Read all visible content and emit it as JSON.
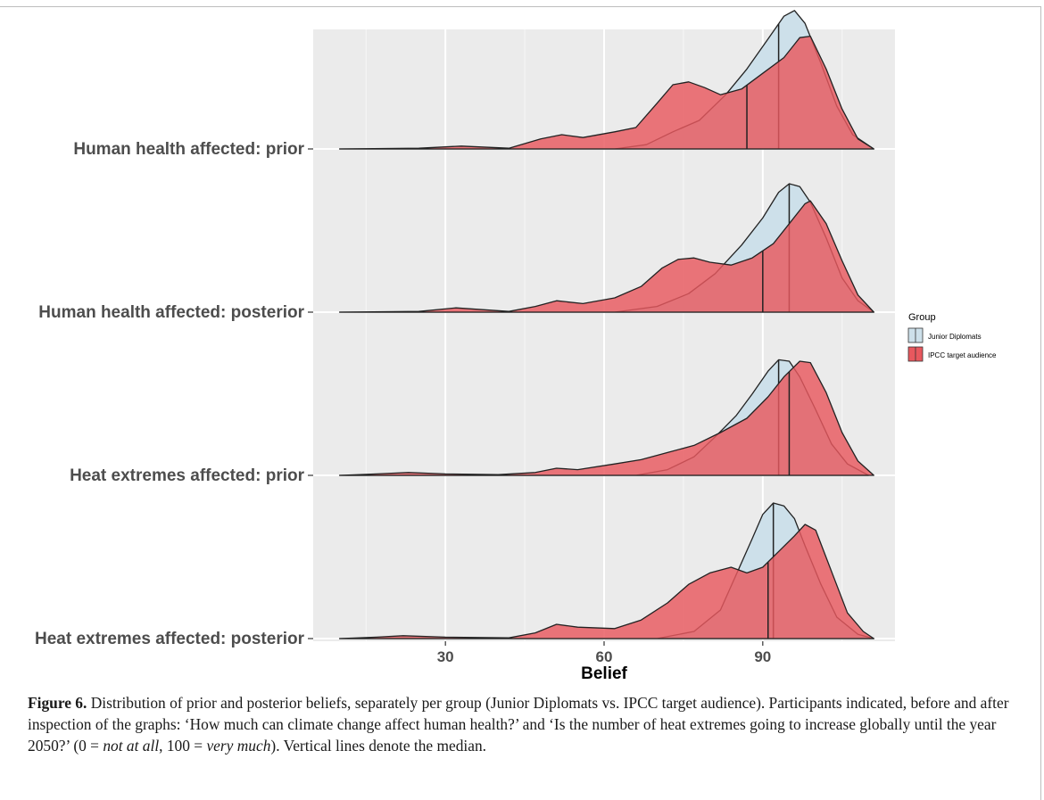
{
  "chart_data": {
    "type": "ridgeline-density",
    "xlabel": "Belief",
    "x_ticks": [
      30,
      60,
      90
    ],
    "xlim": [
      5,
      115
    ],
    "colors": {
      "Junior Diplomats": "#cde0ea",
      "IPCC target audience": "#e8585e"
    },
    "legend": {
      "title": "Group",
      "placement": "right",
      "entries": [
        "Junior Diplomats",
        "IPCC target audience"
      ]
    },
    "rows": [
      {
        "label": "Human health affected: prior",
        "series": [
          {
            "name": "IPCC target audience",
            "median": 87,
            "points": [
              [
                10,
                0
              ],
              [
                25,
                0.005
              ],
              [
                33,
                0.02
              ],
              [
                42,
                0.005
              ],
              [
                48,
                0.07
              ],
              [
                52,
                0.1
              ],
              [
                56,
                0.08
              ],
              [
                62,
                0.12
              ],
              [
                66,
                0.15
              ],
              [
                70,
                0.32
              ],
              [
                73,
                0.45
              ],
              [
                76,
                0.47
              ],
              [
                79,
                0.43
              ],
              [
                82,
                0.38
              ],
              [
                86,
                0.42
              ],
              [
                90,
                0.53
              ],
              [
                94,
                0.64
              ],
              [
                97,
                0.78
              ],
              [
                99,
                0.79
              ],
              [
                102,
                0.56
              ],
              [
                105,
                0.28
              ],
              [
                108,
                0.07
              ],
              [
                111,
                0
              ]
            ]
          },
          {
            "name": "Junior Diplomats",
            "median": 93,
            "points": [
              [
                10,
                0
              ],
              [
                30,
                0
              ],
              [
                50,
                0
              ],
              [
                62,
                0
              ],
              [
                68,
                0.03
              ],
              [
                73,
                0.12
              ],
              [
                78,
                0.2
              ],
              [
                83,
                0.38
              ],
              [
                87,
                0.56
              ],
              [
                91,
                0.77
              ],
              [
                94,
                0.93
              ],
              [
                96,
                0.97
              ],
              [
                98,
                0.88
              ],
              [
                101,
                0.6
              ],
              [
                104,
                0.3
              ],
              [
                107,
                0.1
              ],
              [
                111,
                0
              ]
            ]
          }
        ]
      },
      {
        "label": "Human health affected: posterior",
        "series": [
          {
            "name": "IPCC target audience",
            "median": 90,
            "points": [
              [
                10,
                0
              ],
              [
                25,
                0.005
              ],
              [
                32,
                0.03
              ],
              [
                42,
                0.005
              ],
              [
                47,
                0.04
              ],
              [
                51,
                0.08
              ],
              [
                56,
                0.06
              ],
              [
                62,
                0.1
              ],
              [
                67,
                0.18
              ],
              [
                71,
                0.31
              ],
              [
                74,
                0.37
              ],
              [
                77,
                0.38
              ],
              [
                80,
                0.35
              ],
              [
                84,
                0.33
              ],
              [
                88,
                0.38
              ],
              [
                92,
                0.48
              ],
              [
                95,
                0.62
              ],
              [
                98,
                0.76
              ],
              [
                99,
                0.78
              ],
              [
                102,
                0.62
              ],
              [
                105,
                0.36
              ],
              [
                108,
                0.12
              ],
              [
                111,
                0
              ]
            ]
          },
          {
            "name": "Junior Diplomats",
            "median": 95,
            "points": [
              [
                10,
                0
              ],
              [
                30,
                0
              ],
              [
                50,
                0
              ],
              [
                62,
                0
              ],
              [
                70,
                0.04
              ],
              [
                76,
                0.13
              ],
              [
                81,
                0.27
              ],
              [
                86,
                0.47
              ],
              [
                90,
                0.66
              ],
              [
                93,
                0.84
              ],
              [
                95,
                0.9
              ],
              [
                97,
                0.88
              ],
              [
                99,
                0.77
              ],
              [
                102,
                0.52
              ],
              [
                105,
                0.24
              ],
              [
                108,
                0.08
              ],
              [
                111,
                0
              ]
            ]
          }
        ]
      },
      {
        "label": "Heat extremes affected: prior",
        "series": [
          {
            "name": "IPCC target audience",
            "median": 95,
            "points": [
              [
                10,
                0
              ],
              [
                17,
                0.01
              ],
              [
                23,
                0.02
              ],
              [
                30,
                0.01
              ],
              [
                40,
                0.005
              ],
              [
                47,
                0.02
              ],
              [
                51,
                0.05
              ],
              [
                55,
                0.04
              ],
              [
                62,
                0.08
              ],
              [
                67,
                0.11
              ],
              [
                72,
                0.16
              ],
              [
                77,
                0.21
              ],
              [
                82,
                0.3
              ],
              [
                87,
                0.4
              ],
              [
                91,
                0.55
              ],
              [
                94,
                0.69
              ],
              [
                97,
                0.8
              ],
              [
                99,
                0.79
              ],
              [
                102,
                0.58
              ],
              [
                105,
                0.3
              ],
              [
                108,
                0.1
              ],
              [
                111,
                0
              ]
            ]
          },
          {
            "name": "Junior Diplomats",
            "median": 93,
            "points": [
              [
                10,
                0
              ],
              [
                30,
                0
              ],
              [
                50,
                0
              ],
              [
                66,
                0
              ],
              [
                72,
                0.04
              ],
              [
                77,
                0.13
              ],
              [
                81,
                0.27
              ],
              [
                85,
                0.42
              ],
              [
                88,
                0.57
              ],
              [
                91,
                0.73
              ],
              [
                93,
                0.81
              ],
              [
                95,
                0.8
              ],
              [
                97,
                0.69
              ],
              [
                100,
                0.46
              ],
              [
                103,
                0.22
              ],
              [
                106,
                0.08
              ],
              [
                110,
                0
              ]
            ]
          }
        ]
      },
      {
        "label": "Heat extremes affected: posterior",
        "series": [
          {
            "name": "IPCC target audience",
            "median": 91,
            "points": [
              [
                10,
                0
              ],
              [
                17,
                0.01
              ],
              [
                22,
                0.02
              ],
              [
                30,
                0.01
              ],
              [
                42,
                0.005
              ],
              [
                47,
                0.04
              ],
              [
                51,
                0.1
              ],
              [
                55,
                0.08
              ],
              [
                62,
                0.07
              ],
              [
                67,
                0.13
              ],
              [
                72,
                0.25
              ],
              [
                76,
                0.38
              ],
              [
                80,
                0.46
              ],
              [
                84,
                0.5
              ],
              [
                87,
                0.46
              ],
              [
                90,
                0.5
              ],
              [
                93,
                0.61
              ],
              [
                96,
                0.72
              ],
              [
                98,
                0.8
              ],
              [
                100,
                0.76
              ],
              [
                103,
                0.47
              ],
              [
                106,
                0.18
              ],
              [
                109,
                0.05
              ],
              [
                111,
                0
              ]
            ]
          },
          {
            "name": "Junior Diplomats",
            "median": 92,
            "points": [
              [
                10,
                0
              ],
              [
                30,
                0
              ],
              [
                50,
                0
              ],
              [
                70,
                0
              ],
              [
                77,
                0.05
              ],
              [
                82,
                0.2
              ],
              [
                85,
                0.45
              ],
              [
                88,
                0.7
              ],
              [
                90,
                0.87
              ],
              [
                92,
                0.95
              ],
              [
                94,
                0.93
              ],
              [
                96,
                0.84
              ],
              [
                98,
                0.65
              ],
              [
                101,
                0.38
              ],
              [
                104,
                0.15
              ],
              [
                108,
                0.03
              ],
              [
                111,
                0
              ]
            ]
          }
        ]
      }
    ]
  },
  "caption": {
    "label": "Figure 6.",
    "text_1": " Distribution of prior and posterior beliefs, separately per group (Junior Diplomats vs. IPCC target audience). Participants indicated, before and after inspection of the graphs: ‘How much can climate change affect human health?’ and ‘Is the number of heat extremes going to increase globally until the year 2050?’ (0 = ",
    "italic_1": "not at all",
    "text_2": ", 100 = ",
    "italic_2": "very much",
    "text_3": "). Vertical lines denote the median."
  }
}
